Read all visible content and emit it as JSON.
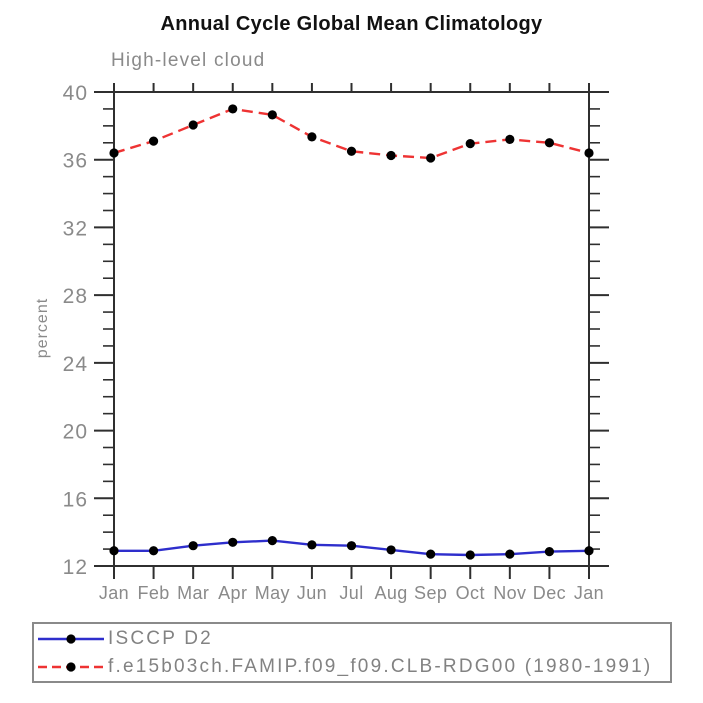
{
  "chart_data": {
    "type": "line",
    "title": "Annual Cycle Global Mean Climatology",
    "subtitle": "High-level cloud",
    "categories": [
      "Jan",
      "Feb",
      "Mar",
      "Apr",
      "May",
      "Jun",
      "Jul",
      "Aug",
      "Sep",
      "Oct",
      "Nov",
      "Dec",
      "Jan"
    ],
    "series": [
      {
        "name": "ISCCP D2",
        "color": "#2e2ecc",
        "line_style": "solid",
        "marker": "filled-black-circle",
        "values": [
          12.9,
          12.9,
          13.2,
          13.4,
          13.5,
          13.25,
          13.2,
          12.95,
          12.7,
          12.65,
          12.7,
          12.85,
          12.9
        ]
      },
      {
        "name": "f.e15b03ch.FAMIP.f09_f09.CLB-RDG00 (1980-1991)",
        "color": "#ee3333",
        "line_style": "dashed",
        "marker": "filled-black-circle",
        "values": [
          36.4,
          37.1,
          38.05,
          39.0,
          38.65,
          37.35,
          36.5,
          36.25,
          36.1,
          36.95,
          37.2,
          37.0,
          36.4
        ]
      }
    ],
    "xlabel": "",
    "ylabel": "percent",
    "ylim": [
      12,
      40
    ],
    "ytick_values": [
      12,
      16,
      20,
      24,
      28,
      32,
      36,
      40
    ],
    "ytick_labels": [
      "12",
      "16",
      "20",
      "24",
      "28",
      "32",
      "36",
      "40"
    ],
    "yminor_step": 1,
    "grid": false,
    "legend_position": "bottom-left-box"
  },
  "colors": {
    "background": "#ffffff",
    "frame": "#2f2f2f",
    "tick_label_text": "#8a8a8a",
    "title_text": "#111111",
    "series_blue": "#2e2ecc",
    "series_red": "#ee3333",
    "marker_black": "#000000",
    "legend_border": "#8a8a8a",
    "legend_text": "#828282"
  }
}
